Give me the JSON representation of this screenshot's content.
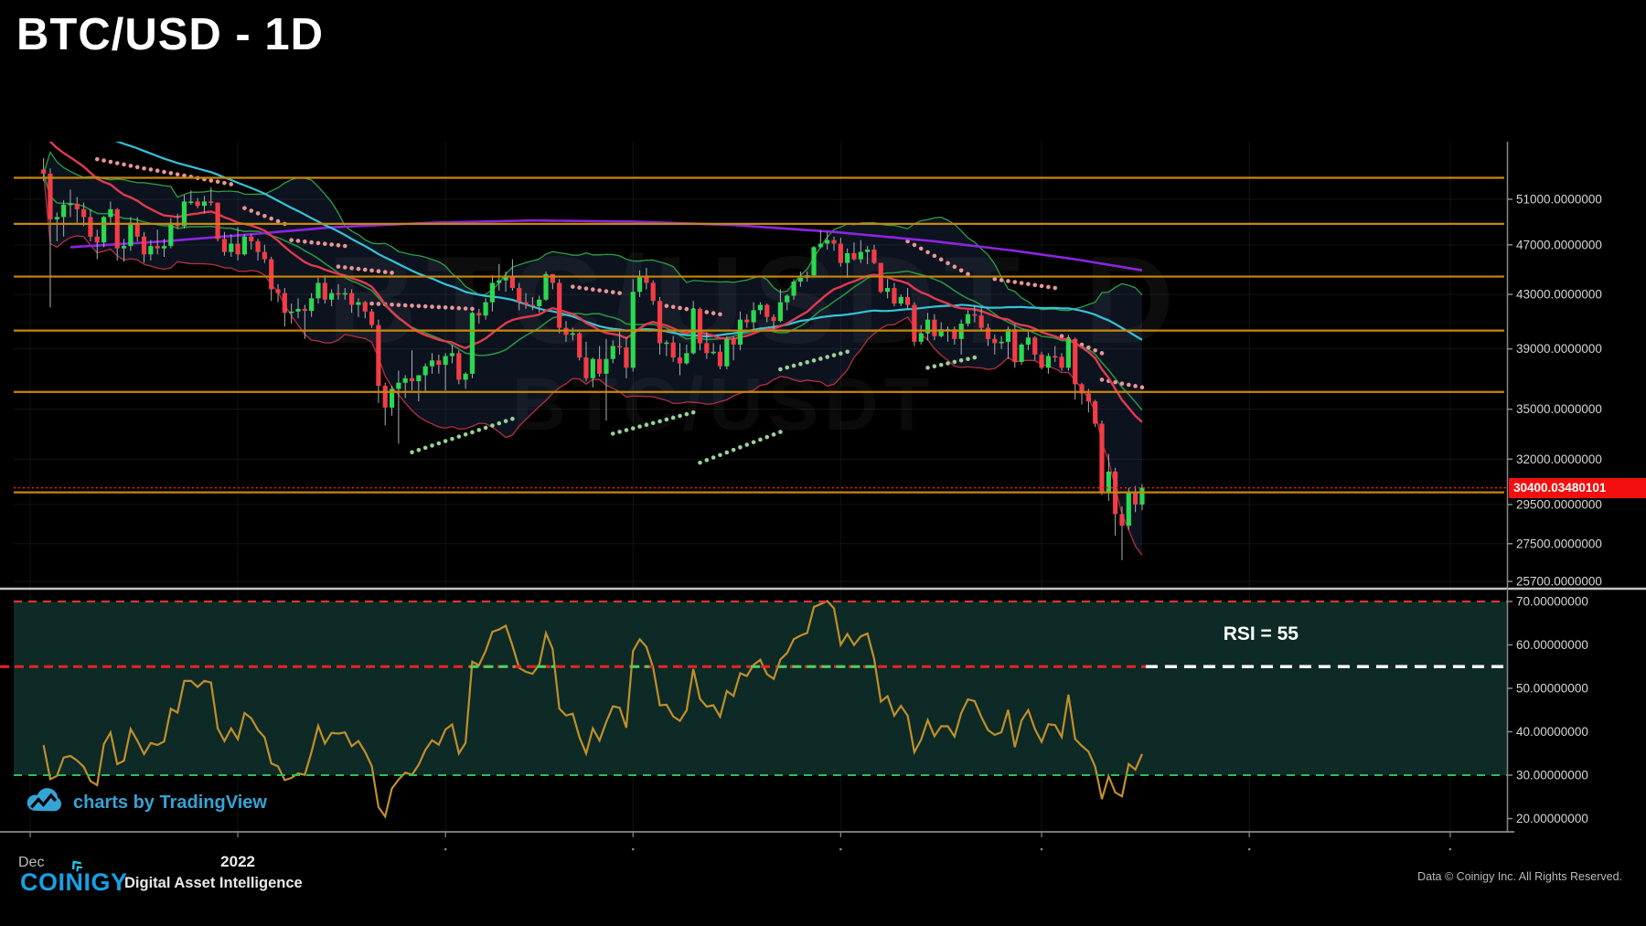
{
  "title": "BTC/USD - 1D",
  "watermark": {
    "symbol": "BTC/USDT",
    "interval": "D",
    "line2": "BTC/USDT"
  },
  "price_tag": "30400.03480101",
  "rsi_label": "RSI = 55",
  "footer": {
    "tv_text": "charts by TradingView",
    "brand": "COINIGY",
    "tagline": "Digital Asset Intelligence",
    "credit": "Data © Coinigy Inc.  All Rights Reserved."
  },
  "colors": {
    "candle_up": "#2bd850",
    "candle_down": "#f23c46",
    "wick": "#a9b0b6",
    "bb_fill": "rgba(70,110,175,0.17)",
    "bb_upper": "#2f9e44",
    "bb_lower": "#b2303e",
    "ema": "#e13a4f",
    "sma50": "#36c3da",
    "ma200": "#8e24e0",
    "sar_above": "#ea9597",
    "sar_below": "#9ccf9a",
    "ray": "#c8860d",
    "last_price_line": "#ef2020",
    "tag_bg": "#f30f0f",
    "rsi_line": "#c18f2a",
    "rsi_bg": "#0d2a26",
    "rsi_upper": "#e03232",
    "rsi_lower": "#2fbf4f",
    "rsi_mid_red": "#ee2222",
    "rsi_mid_green": "#49d45f",
    "rsi_mid_white": "#ffffff",
    "axis_text": "#d6d6d6",
    "grid": "rgba(255,255,255,0.07)",
    "axis_line": "#8a8a8a",
    "separator": "#c4c4c4"
  },
  "price_axis": {
    "ticks": [
      {
        "label": "51000.0000000",
        "value": 51000
      },
      {
        "label": "47000.0000000",
        "value": 47000
      },
      {
        "label": "43000.0000000",
        "value": 43000
      },
      {
        "label": "39000.0000000",
        "value": 39000
      },
      {
        "label": "35000.0000000",
        "value": 35000
      },
      {
        "label": "32000.0000000",
        "value": 32000
      },
      {
        "label": "29500.0000000",
        "value": 29500
      },
      {
        "label": "27500.0000000",
        "value": 27500
      },
      {
        "label": "25700.0000000",
        "value": 25700
      }
    ]
  },
  "rsi_axis": {
    "ticks": [
      {
        "label": "70.00000000",
        "value": 70
      },
      {
        "label": "60.00000000",
        "value": 60
      },
      {
        "label": "50.00000000",
        "value": 50
      },
      {
        "label": "40.00000000",
        "value": 40
      },
      {
        "label": "30.00000000",
        "value": 30
      },
      {
        "label": "20.00000000",
        "value": 20
      }
    ],
    "grid_values": [
      60,
      50,
      40
    ]
  },
  "x_axis": {
    "labels": [
      {
        "text": "Dec",
        "day": 0,
        "bold": false
      },
      {
        "text": "2022",
        "day": 31,
        "bold": true
      }
    ],
    "minor_tick_days": [
      62,
      90,
      121,
      151,
      182,
      212
    ]
  },
  "chart_data": {
    "type": "candlestick",
    "start_date": "2021-12-01",
    "interval": "1D",
    "scale": "log",
    "levels": {
      "orange_rays": [
        53000,
        48800,
        44400,
        40300,
        36100,
        30150
      ],
      "current_price": 30400.034801
    },
    "rsi": {
      "period": 14,
      "upper": 70,
      "lower": 30,
      "mid": 55
    },
    "indicators": {
      "bb": {
        "period": 20,
        "mult": 2
      },
      "ema": {
        "period": 21
      },
      "sma50": {
        "period": 50,
        "seed": 59500
      }
    },
    "ma200_anchors": [
      [
        6,
        46800
      ],
      [
        20,
        47300
      ],
      [
        31,
        47800
      ],
      [
        45,
        48500
      ],
      [
        60,
        48900
      ],
      [
        75,
        49100
      ],
      [
        90,
        49000
      ],
      [
        105,
        48700
      ],
      [
        120,
        48100
      ],
      [
        135,
        47300
      ],
      [
        147,
        46500
      ],
      [
        156,
        45800
      ],
      [
        166,
        44900
      ]
    ],
    "sar_chains": [
      {
        "side": "above",
        "d0": 10,
        "d1": 17,
        "p0": 54800,
        "p1": 53900
      },
      {
        "side": "above",
        "d0": 18,
        "d1": 30,
        "p0": 53800,
        "p1": 52400
      },
      {
        "side": "above",
        "d0": 32,
        "d1": 38,
        "p0": 50200,
        "p1": 48800
      },
      {
        "side": "above",
        "d0": 39,
        "d1": 47,
        "p0": 47400,
        "p1": 46900
      },
      {
        "side": "above",
        "d0": 46,
        "d1": 54,
        "p0": 45200,
        "p1": 44700
      },
      {
        "side": "above",
        "d0": 51,
        "d1": 66,
        "p0": 42300,
        "p1": 41900
      },
      {
        "side": "above",
        "d0": 81,
        "d1": 88,
        "p0": 43600,
        "p1": 43100
      },
      {
        "side": "above",
        "d0": 94,
        "d1": 103,
        "p0": 42200,
        "p1": 41500
      },
      {
        "side": "above",
        "d0": 131,
        "d1": 140,
        "p0": 47300,
        "p1": 44600
      },
      {
        "side": "above",
        "d0": 144,
        "d1": 153,
        "p0": 44200,
        "p1": 43500
      },
      {
        "side": "above",
        "d0": 154,
        "d1": 160,
        "p0": 39900,
        "p1": 38700
      },
      {
        "side": "above",
        "d0": 160,
        "d1": 166,
        "p0": 36900,
        "p1": 36400
      },
      {
        "side": "below",
        "d0": 57,
        "d1": 72,
        "p0": 32400,
        "p1": 34400
      },
      {
        "side": "below",
        "d0": 87,
        "d1": 99,
        "p0": 33500,
        "p1": 34800
      },
      {
        "side": "below",
        "d0": 100,
        "d1": 112,
        "p0": 31800,
        "p1": 33600
      },
      {
        "side": "below",
        "d0": 112,
        "d1": 122,
        "p0": 37600,
        "p1": 38800
      },
      {
        "side": "below",
        "d0": 134,
        "d1": 141,
        "p0": 37700,
        "p1": 38400
      }
    ],
    "pre_closes": [
      57800,
      57300,
      56300,
      57500,
      58800,
      59100,
      57800,
      56300,
      57300,
      58700,
      59000,
      57700,
      56500,
      57200
    ],
    "candle_start_day": 2,
    "candles": [
      [
        53800,
        54900,
        52700,
        53400
      ],
      [
        53400,
        53900,
        42000,
        49200
      ],
      [
        49200,
        49800,
        47300,
        49400
      ],
      [
        49400,
        50900,
        47700,
        50500
      ],
      [
        50500,
        51900,
        49400,
        50600
      ],
      [
        50600,
        51200,
        48900,
        50100
      ],
      [
        50100,
        50700,
        48600,
        49400
      ],
      [
        49400,
        50100,
        47300,
        47700
      ],
      [
        47700,
        48300,
        45800,
        47200
      ],
      [
        47200,
        49500,
        46800,
        49400
      ],
      [
        49400,
        50800,
        48700,
        50100
      ],
      [
        50100,
        50200,
        45700,
        46700
      ],
      [
        46700,
        47500,
        45600,
        46900
      ],
      [
        46900,
        49400,
        46500,
        48900
      ],
      [
        48900,
        49400,
        47300,
        47700
      ],
      [
        47700,
        48100,
        45500,
        46200
      ],
      [
        46200,
        47400,
        45700,
        46900
      ],
      [
        46900,
        48300,
        46200,
        46700
      ],
      [
        46700,
        47500,
        46000,
        46900
      ],
      [
        46900,
        49300,
        46700,
        48900
      ],
      [
        48900,
        49700,
        48400,
        48600
      ],
      [
        48600,
        51400,
        48400,
        50800
      ],
      [
        50800,
        51800,
        50500,
        50800
      ],
      [
        50800,
        51100,
        50200,
        50400
      ],
      [
        50400,
        51300,
        49700,
        50800
      ],
      [
        50800,
        52100,
        50400,
        50700
      ],
      [
        50700,
        50700,
        47300,
        47500
      ],
      [
        47500,
        48100,
        46100,
        46400
      ],
      [
        46400,
        47900,
        46000,
        47100
      ],
      [
        47100,
        48500,
        45700,
        46200
      ],
      [
        46200,
        47900,
        46100,
        47700
      ],
      [
        47700,
        47900,
        46600,
        47300
      ],
      [
        47300,
        47500,
        45700,
        46400
      ],
      [
        46400,
        47000,
        45500,
        45800
      ],
      [
        45800,
        46000,
        42500,
        43400
      ],
      [
        43400,
        43800,
        42400,
        43100
      ],
      [
        43100,
        43500,
        40600,
        41600
      ],
      [
        41600,
        42300,
        40800,
        41700
      ],
      [
        41700,
        42700,
        41200,
        41900
      ],
      [
        41900,
        42200,
        39700,
        41750
      ],
      [
        41750,
        43100,
        41300,
        42700
      ],
      [
        42700,
        44300,
        42300,
        43900
      ],
      [
        43900,
        44500,
        42300,
        42600
      ],
      [
        42600,
        43400,
        42100,
        43100
      ],
      [
        43100,
        43800,
        42600,
        43050
      ],
      [
        43050,
        43500,
        42600,
        43100
      ],
      [
        43100,
        43400,
        41600,
        42200
      ],
      [
        42200,
        42700,
        41300,
        42400
      ],
      [
        42400,
        42500,
        41200,
        41700
      ],
      [
        41700,
        41900,
        40500,
        40700
      ],
      [
        40700,
        41100,
        35400,
        36500
      ],
      [
        36500,
        36700,
        34000,
        35100
      ],
      [
        35100,
        36500,
        34600,
        36300
      ],
      [
        36300,
        37500,
        32900,
        36700
      ],
      [
        36700,
        37200,
        35700,
        37000
      ],
      [
        37000,
        38900,
        36200,
        36800
      ],
      [
        36800,
        37200,
        35500,
        37200
      ],
      [
        37200,
        38000,
        36100,
        37800
      ],
      [
        37800,
        38700,
        37300,
        38200
      ],
      [
        38200,
        38600,
        37300,
        37900
      ],
      [
        37900,
        38700,
        36200,
        38500
      ],
      [
        38500,
        39300,
        38000,
        38700
      ],
      [
        38700,
        38900,
        36600,
        36900
      ],
      [
        36900,
        37400,
        36300,
        37300
      ],
      [
        37300,
        41700,
        37000,
        41600
      ],
      [
        41600,
        41900,
        40800,
        41400
      ],
      [
        41400,
        42700,
        41100,
        42400
      ],
      [
        42400,
        44500,
        41700,
        43900
      ],
      [
        43900,
        45400,
        43300,
        44100
      ],
      [
        44100,
        44800,
        43200,
        44400
      ],
      [
        44400,
        45800,
        43300,
        43500
      ],
      [
        43500,
        43900,
        41800,
        42400
      ],
      [
        42400,
        43100,
        41900,
        42200
      ],
      [
        42200,
        42800,
        41800,
        42100
      ],
      [
        42100,
        42900,
        41600,
        42600
      ],
      [
        42600,
        44800,
        42500,
        44600
      ],
      [
        44600,
        44600,
        43400,
        43900
      ],
      [
        43900,
        44200,
        40100,
        40500
      ],
      [
        40500,
        41000,
        39500,
        40000
      ],
      [
        40000,
        40500,
        39600,
        40100
      ],
      [
        40100,
        40200,
        38200,
        38400
      ],
      [
        38400,
        39500,
        36800,
        37000
      ],
      [
        37000,
        38400,
        36400,
        38300
      ],
      [
        38300,
        39200,
        37100,
        37300
      ],
      [
        37300,
        39700,
        34300,
        38300
      ],
      [
        38300,
        39600,
        38000,
        39200
      ],
      [
        39200,
        40300,
        38600,
        39100
      ],
      [
        39100,
        39800,
        37000,
        37700
      ],
      [
        37700,
        44200,
        37450,
        43200
      ],
      [
        43200,
        44900,
        42800,
        44400
      ],
      [
        44400,
        45100,
        43400,
        43900
      ],
      [
        43900,
        44100,
        42200,
        42500
      ],
      [
        42500,
        42800,
        38600,
        39400
      ],
      [
        39400,
        39600,
        38500,
        39450
      ],
      [
        39450,
        39900,
        38100,
        38400
      ],
      [
        38400,
        39400,
        37200,
        38000
      ],
      [
        38000,
        39300,
        37900,
        38700
      ],
      [
        38700,
        42500,
        38600,
        41900
      ],
      [
        41900,
        42000,
        38900,
        39400
      ],
      [
        39400,
        40200,
        38300,
        38700
      ],
      [
        38700,
        39400,
        38600,
        38800
      ],
      [
        38800,
        39300,
        37600,
        37800
      ],
      [
        37800,
        39900,
        37600,
        39700
      ],
      [
        39700,
        39900,
        38200,
        39300
      ],
      [
        39300,
        41700,
        38900,
        41100
      ],
      [
        41100,
        41500,
        40500,
        40900
      ],
      [
        40900,
        42400,
        40200,
        41800
      ],
      [
        41800,
        42400,
        41500,
        42200
      ],
      [
        42200,
        42300,
        40900,
        41300
      ],
      [
        41300,
        41500,
        40400,
        41000
      ],
      [
        41000,
        43400,
        40900,
        42400
      ],
      [
        42400,
        43000,
        41800,
        42900
      ],
      [
        42900,
        44200,
        42600,
        44000
      ],
      [
        44000,
        44800,
        43600,
        44300
      ],
      [
        44300,
        44800,
        44000,
        44500
      ],
      [
        44500,
        46900,
        44400,
        46800
      ],
      [
        46800,
        48200,
        46700,
        47100
      ],
      [
        47100,
        48100,
        46600,
        47400
      ],
      [
        47400,
        47700,
        46500,
        47100
      ],
      [
        47100,
        47600,
        45200,
        45500
      ],
      [
        45500,
        46700,
        44300,
        46300
      ],
      [
        46300,
        47200,
        45700,
        45800
      ],
      [
        45800,
        47400,
        45500,
        46400
      ],
      [
        46400,
        46900,
        45400,
        46600
      ],
      [
        46600,
        47000,
        45400,
        45500
      ],
      [
        45500,
        45500,
        43100,
        43200
      ],
      [
        43200,
        44200,
        42700,
        43500
      ],
      [
        43500,
        43900,
        42100,
        42300
      ],
      [
        42300,
        43000,
        42100,
        42800
      ],
      [
        42800,
        43500,
        41900,
        42200
      ],
      [
        42200,
        42400,
        39200,
        39500
      ],
      [
        39500,
        40700,
        39300,
        40100
      ],
      [
        40100,
        41600,
        39600,
        41100
      ],
      [
        41100,
        41500,
        39600,
        39900
      ],
      [
        39900,
        40900,
        39800,
        40400
      ],
      [
        40400,
        40600,
        39500,
        40400
      ],
      [
        40400,
        40600,
        39300,
        39700
      ],
      [
        39700,
        41100,
        38600,
        40800
      ],
      [
        40800,
        41800,
        40600,
        41500
      ],
      [
        41500,
        42200,
        40900,
        41400
      ],
      [
        41400,
        42000,
        40300,
        40500
      ],
      [
        40500,
        40800,
        39200,
        39700
      ],
      [
        39700,
        40000,
        38600,
        39400
      ],
      [
        39400,
        39900,
        39000,
        39500
      ],
      [
        39500,
        40600,
        38300,
        40400
      ],
      [
        40400,
        40800,
        37700,
        38100
      ],
      [
        38100,
        39400,
        37900,
        39300
      ],
      [
        39300,
        40400,
        38900,
        39800
      ],
      [
        39800,
        39900,
        38200,
        38600
      ],
      [
        38600,
        38800,
        37600,
        37700
      ],
      [
        37700,
        38700,
        37300,
        38500
      ],
      [
        38500,
        39200,
        38100,
        38450
      ],
      [
        38450,
        38700,
        37500,
        37700
      ],
      [
        37700,
        40000,
        37500,
        39700
      ],
      [
        39700,
        39800,
        35600,
        36600
      ],
      [
        36600,
        36700,
        35300,
        36000
      ],
      [
        36000,
        36300,
        34800,
        35500
      ],
      [
        35500,
        35600,
        33900,
        34100
      ],
      [
        34100,
        34300,
        30000,
        30100
      ],
      [
        30100,
        32300,
        29700,
        31300
      ],
      [
        31300,
        31500,
        27900,
        29000
      ],
      [
        29000,
        29400,
        26700,
        28400
      ],
      [
        28400,
        30400,
        28200,
        30200
      ],
      [
        30200,
        30500,
        29100,
        29500
      ],
      [
        29500,
        30600,
        29200,
        30400
      ]
    ]
  }
}
